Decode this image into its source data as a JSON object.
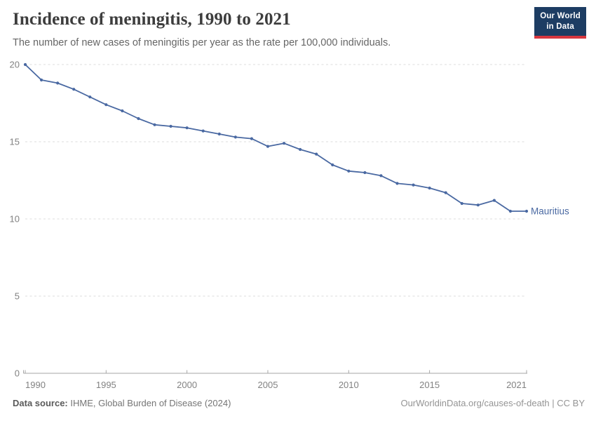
{
  "logo": {
    "line1": "Our World",
    "line2": "in Data",
    "bg_color": "#1d3d63",
    "accent_color": "#d7373f",
    "text_color": "#ffffff"
  },
  "chart_data": {
    "type": "line",
    "title": "Incidence of meningitis, 1990 to 2021",
    "subtitle": "The number of new cases of meningitis per year as the rate per 100,000 individuals.",
    "xlabel": "",
    "ylabel": "",
    "xlim": [
      1990,
      2021
    ],
    "ylim": [
      0,
      20
    ],
    "xticks": [
      1990,
      1995,
      2000,
      2005,
      2010,
      2015,
      2021
    ],
    "yticks": [
      0,
      5,
      10,
      15,
      20
    ],
    "grid": "horizontal-dashed",
    "legend": "inline-end-label",
    "series": [
      {
        "name": "Mauritius",
        "color": "#4a69a2",
        "x": [
          1990,
          1991,
          1992,
          1993,
          1994,
          1995,
          1996,
          1997,
          1998,
          1999,
          2000,
          2001,
          2002,
          2003,
          2004,
          2005,
          2006,
          2007,
          2008,
          2009,
          2010,
          2011,
          2012,
          2013,
          2014,
          2015,
          2016,
          2017,
          2018,
          2019,
          2020,
          2021
        ],
        "values": [
          20.0,
          19.0,
          18.8,
          18.4,
          17.9,
          17.4,
          17.0,
          16.5,
          16.1,
          16.0,
          15.9,
          15.7,
          15.5,
          15.3,
          15.2,
          14.7,
          14.9,
          14.5,
          14.2,
          13.5,
          13.1,
          13.0,
          12.8,
          12.3,
          12.2,
          12.0,
          11.7,
          11.0,
          10.9,
          11.2,
          10.5,
          10.5
        ]
      }
    ]
  },
  "footer": {
    "source_label": "Data source:",
    "source_text": "IHME, Global Burden of Disease (2024)",
    "credit": "OurWorldinData.org/causes-of-death | CC BY"
  }
}
